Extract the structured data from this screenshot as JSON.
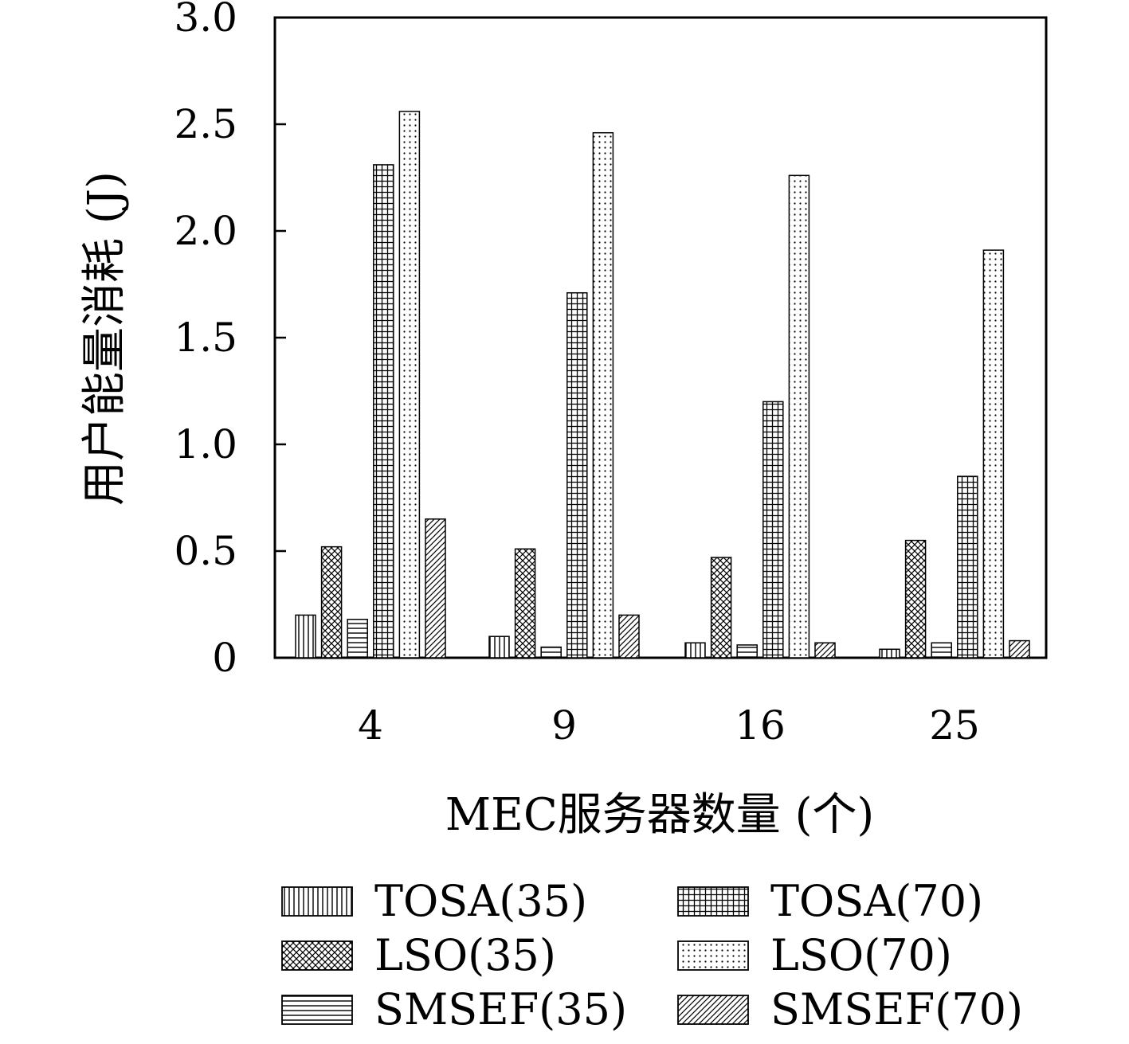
{
  "chart_data": {
    "type": "bar",
    "xlabel": "MEC服务器数量 (个)",
    "ylabel": "用户能量消耗 (J)",
    "categories": [
      "4",
      "9",
      "16",
      "25"
    ],
    "ylim": [
      0,
      3.0
    ],
    "yticks": [
      "0",
      "0.5",
      "1.0",
      "1.5",
      "2.0",
      "2.5",
      "3.0"
    ],
    "grid": false,
    "legend_position": "bottom",
    "series": [
      {
        "name": "TOSA(35)",
        "pattern": "vertical-lines",
        "values": [
          0.2,
          0.1,
          0.07,
          0.04
        ]
      },
      {
        "name": "LSO(35)",
        "pattern": "crosshatch",
        "values": [
          0.52,
          0.51,
          0.47,
          0.55
        ]
      },
      {
        "name": "SMSEF(35)",
        "pattern": "horizontal-lines",
        "values": [
          0.18,
          0.05,
          0.06,
          0.07
        ]
      },
      {
        "name": "TOSA(70)",
        "pattern": "grid",
        "values": [
          2.31,
          1.71,
          1.2,
          0.85
        ]
      },
      {
        "name": "LSO(70)",
        "pattern": "dots",
        "values": [
          2.56,
          2.46,
          2.26,
          1.91
        ]
      },
      {
        "name": "SMSEF(70)",
        "pattern": "diagonal-lines",
        "values": [
          0.65,
          0.2,
          0.07,
          0.08
        ]
      }
    ]
  }
}
